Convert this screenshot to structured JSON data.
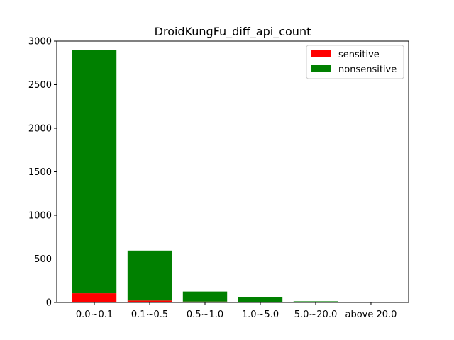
{
  "chart_data": {
    "type": "bar",
    "stacked": true,
    "title": "DroidKungFu_diff_api_count",
    "xlabel": "",
    "ylabel": "",
    "categories": [
      "0.0~0.1",
      "0.1~0.5",
      "0.5~1.0",
      "1.0~5.0",
      "5.0~20.0",
      "above 20.0"
    ],
    "series": [
      {
        "name": "sensitive",
        "color": "#ff0000",
        "values": [
          105,
          22,
          10,
          4,
          1,
          0
        ]
      },
      {
        "name": "nonsensitive",
        "color": "#008000",
        "values": [
          2790,
          573,
          115,
          56,
          12,
          1
        ]
      }
    ],
    "ylim": [
      0,
      3000
    ],
    "yticks": [
      0,
      500,
      1000,
      1500,
      2000,
      2500,
      3000
    ],
    "legend": "top-right",
    "grid": false
  }
}
